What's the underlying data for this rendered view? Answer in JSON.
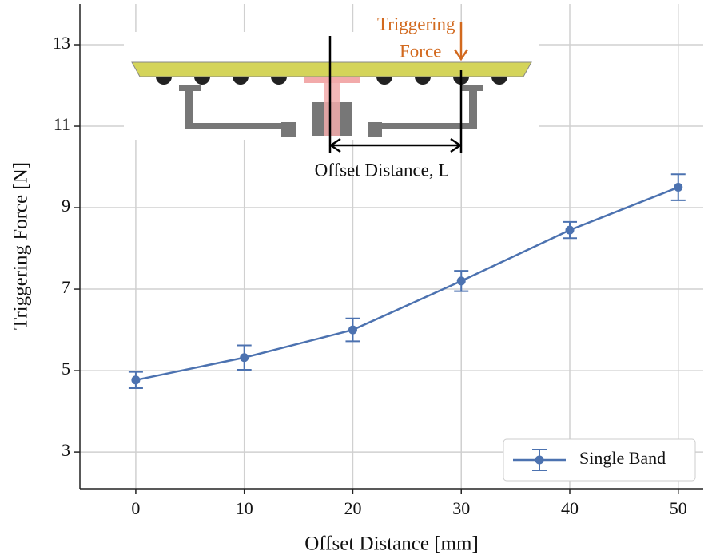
{
  "chart_data": {
    "type": "line",
    "xlabel": "Offset Distance [mm]",
    "ylabel": "Triggering Force [N]",
    "x": [
      0,
      10,
      20,
      30,
      40,
      50
    ],
    "series": [
      {
        "name": "Single Band",
        "color": "#4c72b0",
        "values": [
          4.77,
          5.32,
          6.0,
          7.2,
          8.45,
          9.5
        ],
        "errors": [
          0.2,
          0.3,
          0.28,
          0.25,
          0.2,
          0.32
        ]
      }
    ],
    "xlim": [
      -5.15,
      52.3
    ],
    "ylim": [
      2.1,
      14
    ],
    "xticks": [
      0,
      10,
      20,
      30,
      40,
      50
    ],
    "yticks": [
      3,
      5,
      7,
      9,
      11,
      13
    ],
    "grid": true,
    "legend": "lower right",
    "annotations": {
      "force": [
        "Triggering",
        "Force"
      ],
      "offset": "Offset Distance, L"
    }
  }
}
